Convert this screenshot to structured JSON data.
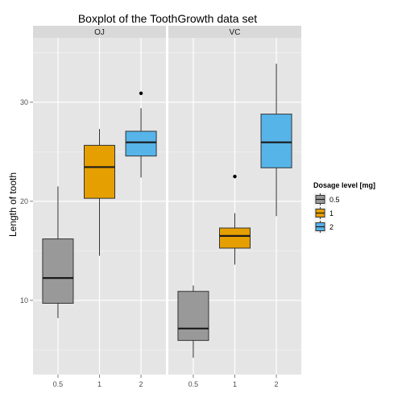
{
  "chart_data": {
    "type": "boxplot",
    "title": "Boxplot of the ToothGrowth data set",
    "xlabel": "",
    "ylabel": "Length of tooth",
    "ylim": [
      2.5,
      36.5
    ],
    "yticks": [
      10,
      20,
      30
    ],
    "categories": [
      "0.5",
      "1",
      "2"
    ],
    "grid": true,
    "legend": {
      "title": "Dosage level [mg]",
      "position": "right",
      "entries": [
        {
          "label": "0.5",
          "color": "#999999"
        },
        {
          "label": "1",
          "color": "#E69F00"
        },
        {
          "label": "2",
          "color": "#56B4E9"
        }
      ]
    },
    "facets": [
      {
        "name": "OJ",
        "boxes": [
          {
            "category": "0.5",
            "min": 8.2,
            "q1": 9.7,
            "median": 12.25,
            "q3": 16.2,
            "max": 21.5,
            "outliers": []
          },
          {
            "category": "1",
            "min": 14.5,
            "q1": 20.3,
            "median": 23.45,
            "q3": 25.65,
            "max": 27.3,
            "outliers": []
          },
          {
            "category": "2",
            "min": 22.4,
            "q1": 24.57,
            "median": 25.95,
            "q3": 27.07,
            "max": 29.4,
            "outliers": [
              30.9
            ]
          }
        ]
      },
      {
        "name": "VC",
        "boxes": [
          {
            "category": "0.5",
            "min": 4.2,
            "q1": 5.95,
            "median": 7.15,
            "q3": 10.9,
            "max": 11.5,
            "outliers": []
          },
          {
            "category": "1",
            "min": 13.6,
            "q1": 15.27,
            "median": 16.5,
            "q3": 17.3,
            "max": 18.8,
            "outliers": [
              22.5
            ]
          },
          {
            "category": "2",
            "min": 18.5,
            "q1": 23.38,
            "median": 25.95,
            "q3": 28.8,
            "max": 33.9,
            "outliers": []
          }
        ]
      }
    ]
  }
}
